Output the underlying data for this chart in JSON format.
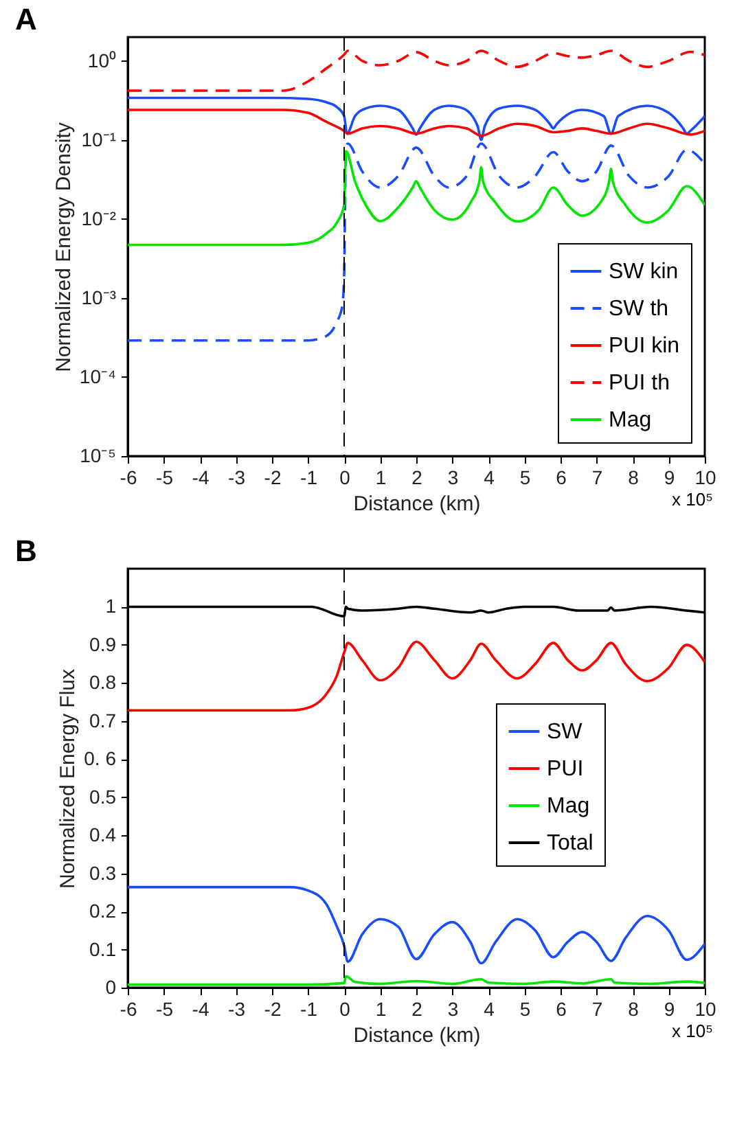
{
  "chart_data": [
    {
      "type": "line",
      "title": "A",
      "xlabel": "Distance (km)",
      "ylabel": "Normalized Energy Density",
      "log": "y",
      "grid": false,
      "legend": "bottom right",
      "xlim": [
        -6,
        10
      ],
      "xticks": [
        -6,
        -5,
        -4,
        -3,
        -2,
        -1,
        0,
        1,
        2,
        3,
        4,
        5,
        6,
        7,
        8,
        9,
        10
      ],
      "ylim": [
        1e-05,
        2
      ],
      "yticks": [
        {
          "value": 1e-05,
          "label": "10⁻⁵"
        },
        {
          "value": 0.0001,
          "label": "10⁻⁴"
        },
        {
          "value": 0.001,
          "label": "10⁻³"
        },
        {
          "value": 0.01,
          "label": "10⁻²"
        },
        {
          "value": 0.1,
          "label": "10⁻¹"
        },
        {
          "value": 1,
          "label": "10⁰"
        }
      ],
      "ref_lines": [
        {
          "axis": "x",
          "value": 0,
          "color": "#000000",
          "line_style": "dashed"
        }
      ],
      "annotations": [
        "x 10⁵"
      ],
      "series": [
        {
          "name": "SW kin",
          "color": "#1a4cff",
          "line_style": "solid",
          "x": [
            -6,
            -2,
            -1,
            -0.5,
            -0.2,
            0,
            0.08,
            0.3,
            0.6,
            1.0,
            1.5,
            1.9,
            2.0,
            2.1,
            2.5,
            2.9,
            3.3,
            3.7,
            3.8,
            3.9,
            4.3,
            4.8,
            5.3,
            5.7,
            5.8,
            5.9,
            6.6,
            7.2,
            7.4,
            7.6,
            8.4,
            9.0,
            9.4,
            9.5,
            9.6,
            10
          ],
          "values": [
            0.34,
            0.34,
            0.33,
            0.3,
            0.26,
            0.2,
            0.12,
            0.2,
            0.25,
            0.27,
            0.24,
            0.14,
            0.117,
            0.14,
            0.24,
            0.27,
            0.25,
            0.15,
            0.1,
            0.15,
            0.25,
            0.27,
            0.24,
            0.16,
            0.14,
            0.16,
            0.24,
            0.2,
            0.12,
            0.2,
            0.27,
            0.22,
            0.14,
            0.12,
            0.13,
            0.2
          ]
        },
        {
          "name": "SW th",
          "color": "#1a4cff",
          "line_style": "dashed",
          "x": [
            -6,
            -1,
            -0.5,
            -0.2,
            -0.05,
            0,
            0.05,
            0.1,
            0.5,
            1.0,
            1.5,
            2.0,
            2.5,
            2.9,
            3.4,
            3.8,
            4.3,
            4.8,
            5.3,
            5.8,
            6.2,
            6.6,
            7.0,
            7.4,
            7.9,
            8.4,
            9.0,
            9.5,
            10
          ],
          "values": [
            0.00029,
            0.00029,
            0.00033,
            0.0005,
            0.0008,
            0.002,
            0.08,
            0.09,
            0.04,
            0.025,
            0.035,
            0.08,
            0.035,
            0.025,
            0.035,
            0.09,
            0.035,
            0.025,
            0.035,
            0.07,
            0.04,
            0.03,
            0.04,
            0.085,
            0.035,
            0.025,
            0.035,
            0.075,
            0.05
          ]
        },
        {
          "name": "PUI kin",
          "color": "#ff0000",
          "line_style": "solid",
          "x": [
            -6,
            -1.7,
            -1,
            -0.5,
            0,
            0.1,
            0.5,
            1.0,
            1.5,
            2.0,
            2.5,
            2.9,
            3.4,
            3.8,
            4.3,
            4.8,
            5.3,
            5.8,
            6.2,
            6.6,
            7.0,
            7.4,
            7.9,
            8.4,
            9.0,
            9.6,
            10
          ],
          "values": [
            0.24,
            0.24,
            0.22,
            0.17,
            0.13,
            0.12,
            0.14,
            0.15,
            0.14,
            0.12,
            0.14,
            0.15,
            0.14,
            0.113,
            0.14,
            0.16,
            0.15,
            0.125,
            0.13,
            0.14,
            0.13,
            0.12,
            0.14,
            0.16,
            0.14,
            0.117,
            0.13
          ]
        },
        {
          "name": "PUI th",
          "color": "#ff0000",
          "line_style": "dashed",
          "x": [
            -6,
            -1.7,
            -1,
            -0.5,
            0,
            0.1,
            0.5,
            1.0,
            1.5,
            2.0,
            2.5,
            2.9,
            3.4,
            3.8,
            4.3,
            4.8,
            5.3,
            5.8,
            6.2,
            6.6,
            7.0,
            7.4,
            7.9,
            8.4,
            9.0,
            9.6,
            10
          ],
          "values": [
            0.42,
            0.42,
            0.55,
            0.8,
            1.2,
            1.34,
            1.0,
            0.88,
            1.0,
            1.29,
            1.0,
            0.88,
            1.0,
            1.34,
            1.0,
            0.84,
            1.0,
            1.25,
            1.15,
            1.1,
            1.18,
            1.34,
            1.0,
            0.84,
            1.0,
            1.3,
            1.18
          ]
        },
        {
          "name": "Mag",
          "color": "#00e600",
          "line_style": "solid",
          "x": [
            -6,
            -1.7,
            -1,
            -0.5,
            -0.2,
            0,
            0.05,
            0.3,
            0.6,
            1.0,
            1.5,
            1.9,
            2.0,
            2.1,
            2.5,
            3.0,
            3.5,
            3.75,
            3.8,
            3.85,
            4.2,
            4.8,
            5.4,
            5.8,
            6.2,
            6.6,
            7.1,
            7.35,
            7.4,
            7.45,
            7.8,
            8.4,
            9.0,
            9.5,
            10
          ],
          "values": [
            0.0047,
            0.0047,
            0.005,
            0.0065,
            0.009,
            0.015,
            0.072,
            0.03,
            0.015,
            0.0094,
            0.014,
            0.025,
            0.03,
            0.025,
            0.013,
            0.0098,
            0.016,
            0.03,
            0.045,
            0.03,
            0.016,
            0.0093,
            0.013,
            0.025,
            0.015,
            0.011,
            0.016,
            0.03,
            0.043,
            0.03,
            0.015,
            0.009,
            0.013,
            0.026,
            0.015
          ]
        }
      ]
    },
    {
      "type": "line",
      "title": "B",
      "xlabel": "Distance (km)",
      "ylabel": "Normalized Energy Flux",
      "grid": false,
      "legend": "right",
      "xlim": [
        -6,
        10
      ],
      "xticks": [
        -6,
        -5,
        -4,
        -3,
        -2,
        -1,
        0,
        1,
        2,
        3,
        4,
        5,
        6,
        7,
        8,
        9,
        10
      ],
      "ylim": [
        0,
        1.1
      ],
      "yticks": [
        0,
        0.1,
        0.2,
        0.3,
        0.4,
        0.5,
        {
          "value": 0.6,
          "label": "0. 6"
        },
        0.7,
        0.8,
        0.9,
        1
      ],
      "ref_lines": [
        {
          "axis": "x",
          "value": 0,
          "color": "#000000",
          "line_style": "dashed"
        }
      ],
      "annotations": [
        "x 10⁵"
      ],
      "series": [
        {
          "name": "SW",
          "color": "#1a4cff",
          "line_style": "solid",
          "x": [
            -6,
            -1.5,
            -1,
            -0.5,
            -0.2,
            0,
            0.1,
            0.5,
            1.0,
            1.5,
            2.0,
            2.5,
            3.0,
            3.5,
            3.8,
            4.2,
            4.8,
            5.3,
            5.8,
            6.2,
            6.6,
            7.0,
            7.4,
            7.8,
            8.4,
            9.0,
            9.5,
            10
          ],
          "values": [
            0.264,
            0.264,
            0.255,
            0.22,
            0.16,
            0.11,
            0.068,
            0.14,
            0.18,
            0.16,
            0.075,
            0.14,
            0.172,
            0.12,
            0.064,
            0.12,
            0.18,
            0.15,
            0.08,
            0.12,
            0.146,
            0.12,
            0.07,
            0.13,
            0.188,
            0.15,
            0.073,
            0.115
          ]
        },
        {
          "name": "PUI",
          "color": "#ff0000",
          "line_style": "solid",
          "x": [
            -6,
            -1.5,
            -1,
            -0.5,
            -0.2,
            0,
            0.1,
            0.5,
            1.0,
            1.5,
            2.0,
            2.5,
            3.0,
            3.5,
            3.8,
            4.2,
            4.8,
            5.3,
            5.8,
            6.2,
            6.6,
            7.0,
            7.4,
            7.8,
            8.4,
            9.0,
            9.5,
            10
          ],
          "values": [
            0.728,
            0.728,
            0.735,
            0.77,
            0.82,
            0.88,
            0.905,
            0.86,
            0.807,
            0.84,
            0.908,
            0.86,
            0.812,
            0.86,
            0.903,
            0.86,
            0.812,
            0.85,
            0.905,
            0.86,
            0.833,
            0.86,
            0.905,
            0.85,
            0.805,
            0.84,
            0.9,
            0.855
          ]
        },
        {
          "name": "Mag",
          "color": "#00e600",
          "line_style": "solid",
          "x": [
            -6,
            -1,
            0,
            0.05,
            0.3,
            1.0,
            2.0,
            3.0,
            3.8,
            4.0,
            5.0,
            5.8,
            6.6,
            7.4,
            7.5,
            8.5,
            9.5,
            10
          ],
          "values": [
            0.008,
            0.008,
            0.012,
            0.03,
            0.015,
            0.01,
            0.017,
            0.01,
            0.022,
            0.013,
            0.01,
            0.016,
            0.011,
            0.022,
            0.013,
            0.01,
            0.016,
            0.012
          ]
        },
        {
          "name": "Total",
          "color": "#000000",
          "line_style": "solid",
          "x": [
            -6,
            -0.9,
            0,
            0.05,
            0.1,
            0.5,
            1.5,
            2.0,
            2.5,
            3.5,
            3.8,
            4.0,
            4.5,
            5.0,
            5.8,
            6.5,
            7.3,
            7.4,
            7.5,
            8.5,
            9.5,
            10
          ],
          "values": [
            1.0,
            1.0,
            0.975,
            1.0,
            0.995,
            0.99,
            0.995,
            1.0,
            0.995,
            0.985,
            0.99,
            0.985,
            0.995,
            1.0,
            1.0,
            0.99,
            0.99,
            0.998,
            0.99,
            1.0,
            0.99,
            0.985
          ]
        }
      ]
    }
  ]
}
